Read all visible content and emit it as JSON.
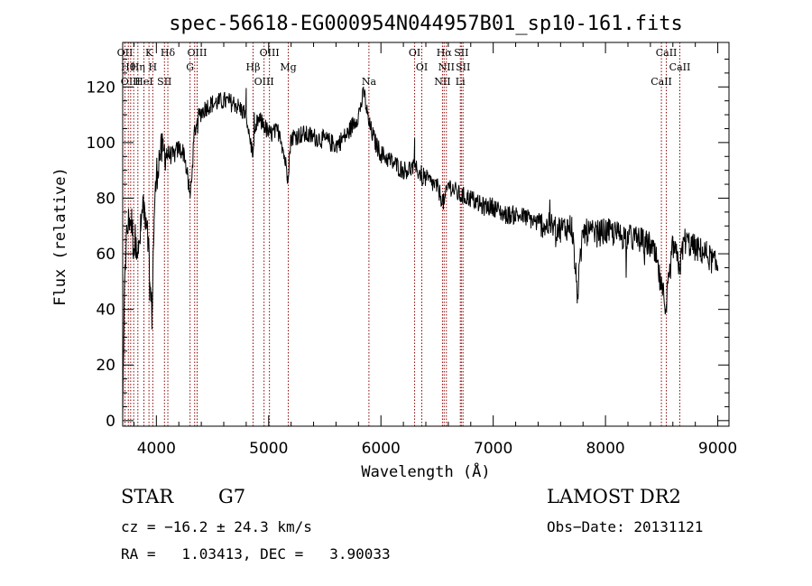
{
  "chart_data": {
    "type": "line",
    "title": "spec-56618-EG000954N044957B01_sp10-161.fits",
    "xlabel": "Wavelength (Å)",
    "ylabel": "Flux (relative)",
    "xlim": [
      3700,
      9100
    ],
    "ylim": [
      -2,
      136
    ],
    "xticks": [
      4000,
      5000,
      6000,
      7000,
      8000,
      9000
    ],
    "xtick_labels": [
      "4000",
      "5000",
      "6000",
      "7000",
      "8000",
      "9000"
    ],
    "yticks": [
      0,
      20,
      40,
      60,
      80,
      100,
      120
    ],
    "ytick_labels": [
      "0",
      "20",
      "40",
      "60",
      "80",
      "100",
      "120"
    ],
    "grid": false,
    "series": [
      {
        "x": [
          3700,
          3720,
          3740,
          3760,
          3780,
          3800,
          3820,
          3840,
          3860,
          3880,
          3900,
          3920,
          3940,
          3960,
          3980,
          4000,
          4030,
          4060,
          4100,
          4150,
          4200,
          4250,
          4300,
          4340,
          4380,
          4450,
          4500,
          4600,
          4700,
          4800,
          4860,
          4900,
          4950,
          5000,
          5100,
          5170,
          5200,
          5300,
          5400,
          5500,
          5600,
          5700,
          5800,
          5850,
          5890,
          5950,
          6000,
          6100,
          6200,
          6300,
          6400,
          6500,
          6563,
          6600,
          6700,
          6800,
          6900,
          7000,
          7100,
          7200,
          7300,
          7400,
          7500,
          7600,
          7700,
          7750,
          7800,
          7900,
          8000,
          8100,
          8200,
          8300,
          8400,
          8450,
          8500,
          8542,
          8600,
          8662,
          8700,
          8800,
          8900,
          9000
        ],
        "y": [
          0,
          56,
          68,
          73,
          71,
          62,
          66,
          60,
          68,
          78,
          75,
          72,
          50,
          38,
          72,
          88,
          96,
          97,
          96,
          95,
          98,
          96,
          80,
          104,
          110,
          113,
          114,
          115,
          114,
          110,
          95,
          108,
          107,
          103,
          104,
          88,
          102,
          103,
          102,
          101,
          99,
          103,
          110,
          118,
          107,
          100,
          96,
          93,
          90,
          91,
          87,
          84,
          78,
          85,
          81,
          80,
          77,
          77,
          74,
          74,
          73,
          71,
          70,
          69,
          70,
          45,
          68,
          67,
          68,
          67,
          66,
          65,
          63,
          58,
          47,
          42,
          63,
          55,
          65,
          62,
          60,
          55
        ]
      }
    ],
    "lines": [
      {
        "x": 3720,
        "label": "OII"
      },
      {
        "x": 3750,
        "label": "Hθ"
      },
      {
        "x": 3771,
        "label": "OIII"
      },
      {
        "x": 3798,
        "label": ""
      },
      {
        "x": 3835,
        "label": "Hη"
      },
      {
        "x": 3889,
        "label": "HeI"
      },
      {
        "x": 3934,
        "label": "K"
      },
      {
        "x": 3968,
        "label": "H"
      },
      {
        "x": 4072,
        "label": "SII"
      },
      {
        "x": 4102,
        "label": "Hδ"
      },
      {
        "x": 4300,
        "label": "G"
      },
      {
        "x": 4341,
        "label": ""
      },
      {
        "x": 4363,
        "label": "OIII"
      },
      {
        "x": 4861,
        "label": "Hβ"
      },
      {
        "x": 4959,
        "label": "OIII"
      },
      {
        "x": 5007,
        "label": "OIII"
      },
      {
        "x": 5175,
        "label": "Mg"
      },
      {
        "x": 5893,
        "label": "Na"
      },
      {
        "x": 6300,
        "label": "OI"
      },
      {
        "x": 6364,
        "label": "OI"
      },
      {
        "x": 6548,
        "label": "NII"
      },
      {
        "x": 6563,
        "label": "Hα"
      },
      {
        "x": 6583,
        "label": "NII"
      },
      {
        "x": 6707,
        "label": "Li"
      },
      {
        "x": 6716,
        "label": "SII"
      },
      {
        "x": 6731,
        "label": "SII"
      },
      {
        "x": 8498,
        "label": "CaII"
      },
      {
        "x": 8542,
        "label": "CaII"
      },
      {
        "x": 8662,
        "label": "CaII"
      }
    ]
  },
  "info": {
    "object_class": "STAR",
    "subclass": "G7",
    "survey": "LAMOST DR2",
    "cz": "cz = −16.2 ± 24.3 km/s",
    "obs_date": "Obs−Date: 20131121",
    "coords": "RA =   1.03413, DEC =   3.90033"
  }
}
